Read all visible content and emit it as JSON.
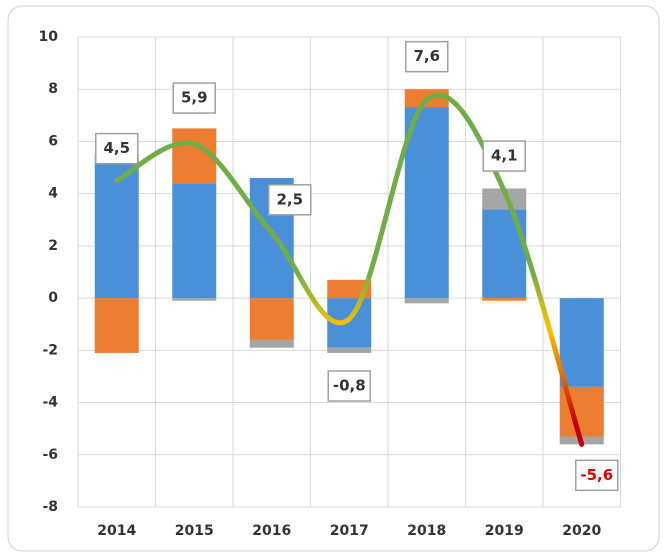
{
  "chart_data": {
    "type": "bar",
    "categories": [
      "2014",
      "2015",
      "2016",
      "2017",
      "2018",
      "2019",
      "2020"
    ],
    "series": [
      {
        "color": "#4a90d9",
        "values": [
          5.5,
          4.4,
          4.6,
          -1.9,
          7.3,
          3.4,
          -3.4
        ]
      },
      {
        "color": "#ed7d31",
        "values": [
          -2.1,
          2.1,
          -1.6,
          0.7,
          0.7,
          -0.1,
          -1.9
        ]
      },
      {
        "color": "#a5a5a5",
        "values": [
          0,
          -0.1,
          -0.3,
          -0.2,
          -0.2,
          0.8,
          -0.3
        ]
      }
    ],
    "line": {
      "color": "#70ad47",
      "values": [
        4.5,
        5.9,
        2.5,
        -0.8,
        7.6,
        4.1,
        -5.6
      ],
      "value_labels": [
        "4,5",
        "5,9",
        "2,5",
        "-0,8",
        "7,6",
        "4,1",
        "-5,6"
      ]
    },
    "ylim": [
      -8,
      10
    ],
    "yticks": [
      -8,
      -6,
      -4,
      -2,
      0,
      2,
      4,
      6,
      8,
      10
    ],
    "grid": true
  }
}
